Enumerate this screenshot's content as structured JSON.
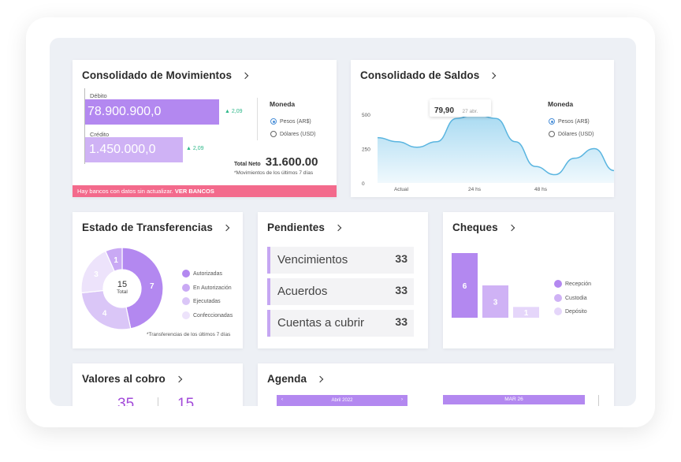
{
  "movimientos": {
    "title": "Consolidado de Movimientos",
    "debito_label": "Débito",
    "debito_value": "78.900.900,0",
    "debito_change": "2,09",
    "credito_label": "Crédito",
    "credito_value": "1.450.000,0",
    "credito_change": "2,09",
    "moneda_title": "Moneda",
    "moneda_opt1": "Pesos (AR$)",
    "moneda_opt2": "Dólares (USD)",
    "total_label": "Total Neto",
    "total_value": "31.600.00",
    "note": "*Movimientos de los últimos 7 días",
    "alert_text": "Hay bancos con datos sin actualizar.",
    "alert_link": "VER BANCOS"
  },
  "saldos": {
    "title": "Consolidado de Saldos",
    "tooltip_value": "79,90",
    "tooltip_date": "27 abr.",
    "moneda_title": "Moneda",
    "moneda_opt1": "Pesos (AR$)",
    "moneda_opt2": "Dólares (USD)"
  },
  "transferencias": {
    "title": "Estado de Transferencias",
    "center_value": "15",
    "center_label": "Total",
    "legend": [
      "Autorizadas",
      "En Autorización",
      "Ejecutadas",
      "Confeccionadas"
    ],
    "note": "*Transferencias de los últimos 7 días"
  },
  "pendientes": {
    "title": "Pendientes",
    "items": [
      {
        "label": "Vencimientos",
        "value": "33"
      },
      {
        "label": "Acuerdos",
        "value": "33"
      },
      {
        "label": "Cuentas a cubrir",
        "value": "33"
      }
    ]
  },
  "cheques": {
    "title": "Cheques",
    "legend": [
      "Recepción",
      "Custodia",
      "Depósito"
    ]
  },
  "valores": {
    "title": "Valores al cobro",
    "v1": "35",
    "v2": "15"
  },
  "agenda": {
    "title": "Agenda",
    "month1": "Abril 2022",
    "day_header": "MAR 26"
  },
  "colors": {
    "purple_dark": "#b388f0",
    "purple_mid": "#cfb2f5",
    "purple_light": "#e5d6fa",
    "alert_pink": "#f36a8c",
    "up_green": "#2eb88a",
    "line_blue": "#5ab5e0"
  },
  "chart_data": [
    {
      "type": "area",
      "x_ticks": [
        "Actual",
        "24 hs",
        "48 hs"
      ],
      "y_ticks": [
        "500",
        "250",
        "0"
      ],
      "ylim": [
        0,
        500
      ],
      "series": [
        {
          "values": [
            330,
            300,
            260,
            300,
            470,
            500,
            470,
            300,
            120,
            60,
            180,
            250,
            90
          ]
        }
      ],
      "annotation": {
        "value": "79,90",
        "label": "27 abr."
      },
      "legend": "top-right"
    },
    {
      "type": "pie",
      "slices": [
        {
          "label": "Autorizadas",
          "value": 7
        },
        {
          "label": "En Autorización",
          "value": 1
        },
        {
          "label": "Ejecutadas",
          "value": 4
        },
        {
          "label": "Confeccionadas",
          "value": 3
        }
      ],
      "total": 15
    },
    {
      "type": "bar",
      "categories": [
        "Recepción",
        "Custodia",
        "Depósito"
      ],
      "values": [
        6,
        3,
        1
      ],
      "legend": "right"
    }
  ]
}
